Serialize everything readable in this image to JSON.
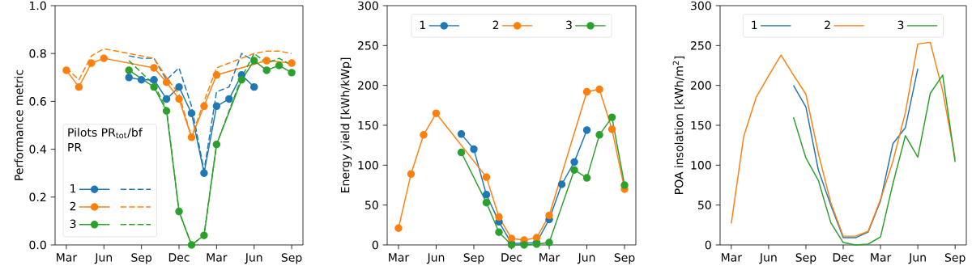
{
  "chart_data": [
    {
      "type": "line",
      "ylabel": "Performance metric",
      "legend_title": "Pilots PR$_{tot}$/bf PR",
      "legend": "bottom left",
      "marker": "circle",
      "line_style": "solid",
      "categories": [
        "Mar",
        null,
        null,
        "Jun",
        null,
        null,
        "Sep",
        null,
        null,
        "Dec",
        null,
        null,
        "Mar",
        null,
        null,
        "Jun",
        null,
        null,
        "Sep"
      ],
      "ylim": [
        0,
        1
      ],
      "yticks": [
        {
          "value": 0,
          "label": "0.0"
        },
        {
          "value": 0.2,
          "label": "0.2"
        },
        {
          "value": 0.4,
          "label": "0.4"
        },
        {
          "value": 0.6,
          "label": "0.6"
        },
        {
          "value": 0.8,
          "label": "0.8"
        },
        {
          "value": 1,
          "label": "1.0"
        }
      ],
      "series": [
        {
          "name": "1",
          "color": "#1f77b4",
          "values": [
            null,
            null,
            null,
            null,
            null,
            0.7,
            0.69,
            0.69,
            0.61,
            0.66,
            0.55,
            0.3,
            0.58,
            0.61,
            0.71,
            0.66,
            null,
            null,
            null
          ]
        },
        {
          "name": "2",
          "color": "#ff7f0e",
          "values": [
            0.73,
            0.66,
            0.76,
            0.78,
            null,
            null,
            null,
            0.74,
            0.68,
            0.61,
            0.45,
            0.58,
            0.71,
            null,
            null,
            null,
            0.77,
            null,
            0.76
          ]
        },
        {
          "name": "3",
          "color": "#2ca02c",
          "values": [
            null,
            null,
            null,
            null,
            null,
            0.73,
            null,
            0.66,
            0.56,
            0.14,
            0.0,
            0.04,
            0.42,
            null,
            0.69,
            0.77,
            0.73,
            0.75,
            0.72
          ]
        },
        {
          "color": "#1f77b4",
          "line_style": "dashed",
          "marker": "none",
          "values": [
            null,
            null,
            null,
            null,
            null,
            0.79,
            0.78,
            0.78,
            0.69,
            0.74,
            0.58,
            0.31,
            0.64,
            0.66,
            0.8,
            0.77,
            null,
            null,
            null
          ]
        },
        {
          "color": "#ff7f0e",
          "line_style": "dashed",
          "marker": "none",
          "values": [
            0.74,
            0.69,
            0.79,
            0.82,
            null,
            null,
            null,
            0.78,
            0.7,
            0.63,
            0.45,
            0.6,
            0.74,
            null,
            null,
            0.8,
            0.81,
            0.81,
            0.8
          ]
        },
        {
          "color": "#2ca02c",
          "line_style": "dashed",
          "marker": "none",
          "values": [
            null,
            null,
            null,
            null,
            null,
            0.77,
            null,
            0.67,
            0.57,
            0.14,
            0.0,
            0.04,
            0.42,
            null,
            0.7,
            0.8,
            0.76,
            0.78,
            0.75
          ]
        }
      ]
    },
    {
      "type": "line",
      "ylabel": "Energy yield [kWh/kWp]",
      "legend": "top",
      "marker": "circle",
      "line_style": "solid",
      "categories": [
        "Mar",
        null,
        null,
        "Jun",
        null,
        null,
        "Sep",
        null,
        null,
        "Dec",
        null,
        null,
        "Mar",
        null,
        null,
        "Jun",
        null,
        null,
        "Sep"
      ],
      "ylim": [
        0,
        300
      ],
      "yticks": [
        0,
        50,
        100,
        150,
        200,
        250,
        300
      ],
      "series": [
        {
          "name": "1",
          "color": "#1f77b4",
          "values": [
            null,
            null,
            null,
            null,
            null,
            139,
            120,
            63,
            29,
            2,
            2,
            3,
            32,
            76,
            104,
            144,
            null,
            null,
            null
          ]
        },
        {
          "name": "2",
          "color": "#ff7f0e",
          "values": [
            21,
            89,
            138,
            165,
            null,
            null,
            null,
            85,
            35,
            8,
            6,
            9,
            37,
            null,
            null,
            192,
            195,
            145,
            70
          ]
        },
        {
          "name": "3",
          "color": "#2ca02c",
          "values": [
            null,
            null,
            null,
            null,
            null,
            116,
            null,
            53,
            16,
            0,
            0,
            1,
            3,
            null,
            94,
            84,
            138,
            160,
            75
          ]
        }
      ]
    },
    {
      "type": "line",
      "ylabel": "POA insolation [kWh/m$^{2}$]",
      "legend": "top",
      "marker": "none",
      "line_style": "solid",
      "categories": [
        "Mar",
        null,
        null,
        "Jun",
        null,
        null,
        "Sep",
        null,
        null,
        "Dec",
        null,
        null,
        "Mar",
        null,
        null,
        "Jun",
        null,
        null,
        "Sep"
      ],
      "ylim": [
        0,
        300
      ],
      "yticks": [
        0,
        50,
        100,
        150,
        200,
        250,
        300
      ],
      "series": [
        {
          "name": "1",
          "color": "#1f77b4",
          "values": [
            null,
            null,
            null,
            null,
            null,
            200,
            173,
            94,
            50,
            9,
            9,
            16,
            55,
            127,
            147,
            221,
            null,
            null,
            null
          ]
        },
        {
          "name": "2",
          "color": "#ff7f0e",
          "values": [
            27,
            136,
            185,
            212,
            238,
            213,
            189,
            115,
            53,
            11,
            11,
            17,
            57,
            105,
            166,
            252,
            254,
            193,
            108
          ]
        },
        {
          "name": "3",
          "color": "#2ca02c",
          "values": [
            null,
            null,
            null,
            null,
            null,
            160,
            109,
            81,
            28,
            3,
            0,
            1,
            10,
            77,
            137,
            110,
            190,
            213,
            104
          ]
        }
      ]
    }
  ]
}
